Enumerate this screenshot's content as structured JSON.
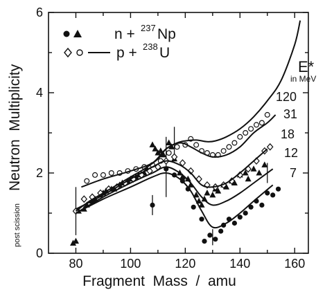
{
  "chart_data": {
    "type": "scatter",
    "xlabel": "Fragment  Mass  /  amu",
    "ylabel_prefix": "post scission",
    "ylabel": "Neutron  Multiplicity",
    "xlim": [
      70,
      165
    ],
    "ylim": [
      0,
      6
    ],
    "xticks": [
      80,
      100,
      120,
      140,
      160
    ],
    "yticks": [
      0,
      2,
      4,
      6
    ],
    "grid": false,
    "legend": {
      "placement": "top-left",
      "entries": [
        {
          "symbols": "● ▲",
          "prefix": "n + ",
          "sup": "237",
          "suffix": "Np"
        },
        {
          "symbols": "◇ ○",
          "prefix": "p + ",
          "sup": "238",
          "suffix": "U"
        }
      ]
    },
    "energy_header": "E*",
    "energy_unit": "in MeV",
    "series": [
      {
        "name": "120",
        "x": [
          80,
          85,
          90,
          95,
          100,
          105,
          110,
          113,
          117,
          120,
          124,
          128,
          131,
          135,
          140,
          145,
          150,
          155,
          160,
          162
        ],
        "y": [
          1.05,
          1.3,
          1.5,
          1.7,
          1.9,
          2.1,
          2.35,
          2.6,
          2.75,
          2.8,
          2.82,
          2.78,
          2.8,
          2.9,
          3.1,
          3.4,
          3.8,
          4.3,
          5.2,
          5.8
        ]
      },
      {
        "name": "31",
        "x": [
          82,
          90,
          100,
          108,
          113,
          118,
          122,
          126,
          130,
          135,
          140,
          145,
          150,
          153
        ],
        "y": [
          1.65,
          1.85,
          2.05,
          2.25,
          2.6,
          2.75,
          2.65,
          2.5,
          2.4,
          2.45,
          2.65,
          3.0,
          3.25,
          3.45
        ]
      },
      {
        "name": "18",
        "x": [
          80,
          90,
          100,
          108,
          113,
          118,
          122,
          126,
          130,
          135,
          140,
          145,
          150
        ],
        "y": [
          1.1,
          1.45,
          1.85,
          2.15,
          2.3,
          2.2,
          2.0,
          1.7,
          1.65,
          1.75,
          2.0,
          2.3,
          2.6
        ]
      },
      {
        "name": "12",
        "x": [
          80,
          90,
          100,
          108,
          113,
          118,
          122,
          126,
          130,
          135,
          140,
          145,
          152
        ],
        "y": [
          1.0,
          1.4,
          1.75,
          2.0,
          2.15,
          2.0,
          1.75,
          1.4,
          1.2,
          1.3,
          1.5,
          1.75,
          2.1
        ]
      },
      {
        "name": "7",
        "x": [
          80,
          90,
          100,
          108,
          113,
          118,
          122,
          126,
          130,
          135,
          140,
          145,
          152
        ],
        "y": [
          1.0,
          1.35,
          1.65,
          1.9,
          2.0,
          1.85,
          1.55,
          1.05,
          0.65,
          0.75,
          1.0,
          1.3,
          1.7
        ]
      }
    ],
    "points": [
      {
        "marker": "triangle",
        "x": [
          79,
          80,
          81,
          83,
          84,
          86,
          87,
          89,
          90,
          91,
          93,
          94,
          96,
          97,
          99,
          100,
          102,
          103,
          105,
          106,
          108,
          109,
          110,
          111,
          112,
          114,
          115,
          116,
          118,
          119,
          121,
          122,
          124,
          125,
          126,
          127,
          128,
          130,
          131,
          132,
          134,
          135,
          137,
          138,
          140,
          142,
          143,
          145,
          147,
          149
        ],
        "y": [
          0.25,
          0.3,
          1.05,
          1.1,
          1.2,
          1.3,
          1.35,
          1.45,
          1.5,
          1.55,
          1.6,
          1.6,
          1.7,
          1.75,
          1.8,
          1.85,
          1.9,
          1.95,
          2.0,
          2.1,
          2.7,
          2.6,
          2.5,
          2.55,
          2.45,
          2.75,
          2.65,
          2.35,
          2.0,
          1.9,
          1.85,
          1.7,
          1.45,
          1.3,
          1.2,
          1.35,
          1.5,
          1.45,
          1.6,
          1.55,
          1.7,
          1.65,
          1.8,
          1.75,
          1.95,
          2.0,
          1.85,
          2.1,
          2.0,
          2.2
        ]
      },
      {
        "marker": "circle",
        "x": [
          80,
          108,
          113,
          116,
          119,
          121,
          123,
          126,
          127,
          129,
          131,
          133,
          134,
          136,
          138,
          140,
          142,
          144,
          146,
          148,
          150,
          152,
          154
        ],
        "y": [
          1.05,
          1.2,
          2.1,
          1.95,
          1.8,
          1.6,
          1.15,
          0.85,
          0.3,
          0.45,
          0.35,
          0.55,
          0.7,
          0.85,
          0.75,
          0.9,
          1.0,
          1.15,
          1.3,
          1.2,
          1.5,
          1.45,
          1.6
        ]
      },
      {
        "marker": "open-diamond",
        "x": [
          80,
          83,
          86,
          89,
          92,
          95,
          98,
          101,
          104,
          107,
          110,
          113,
          116,
          119,
          122,
          125,
          128,
          131,
          134,
          137,
          140,
          143,
          146,
          149,
          151
        ],
        "y": [
          1.05,
          1.35,
          1.4,
          1.5,
          1.6,
          1.65,
          1.75,
          1.85,
          1.95,
          2.05,
          2.15,
          2.3,
          2.4,
          2.25,
          2.05,
          1.85,
          1.7,
          1.65,
          1.7,
          1.8,
          1.95,
          2.1,
          2.3,
          2.55,
          2.65
        ]
      },
      {
        "marker": "open-circle",
        "x": [
          84,
          87,
          90,
          93,
          96,
          99,
          102,
          105,
          108,
          111,
          114,
          117,
          120,
          122,
          124,
          126,
          128,
          130,
          132,
          134,
          136,
          138,
          140,
          142,
          144,
          146,
          148,
          150
        ],
        "y": [
          1.8,
          1.95,
          1.95,
          2.0,
          2.0,
          2.05,
          2.1,
          2.15,
          2.2,
          2.3,
          2.5,
          2.65,
          2.7,
          2.85,
          2.7,
          2.55,
          2.5,
          2.45,
          2.45,
          2.55,
          2.65,
          2.75,
          2.9,
          3.0,
          3.1,
          3.2,
          3.25,
          3.45
        ]
      }
    ],
    "error_bars": [
      {
        "x": 80,
        "y": 1.05,
        "lo": 0.45,
        "hi": 1.65
      },
      {
        "x": 108,
        "y": 1.2,
        "lo": 0.95,
        "hi": 1.45
      },
      {
        "x": 113,
        "y": 2.25,
        "lo": 1.4,
        "hi": 2.9
      },
      {
        "x": 116,
        "y": 2.75,
        "lo": 2.35,
        "hi": 3.15
      },
      {
        "x": 130,
        "y": 0.35,
        "lo": 0.2,
        "hi": 0.6
      },
      {
        "x": 150,
        "y": 2.0,
        "lo": 1.75,
        "hi": 2.25
      }
    ],
    "colors": {
      "ink": "#111111",
      "background": "#ffffff"
    }
  }
}
